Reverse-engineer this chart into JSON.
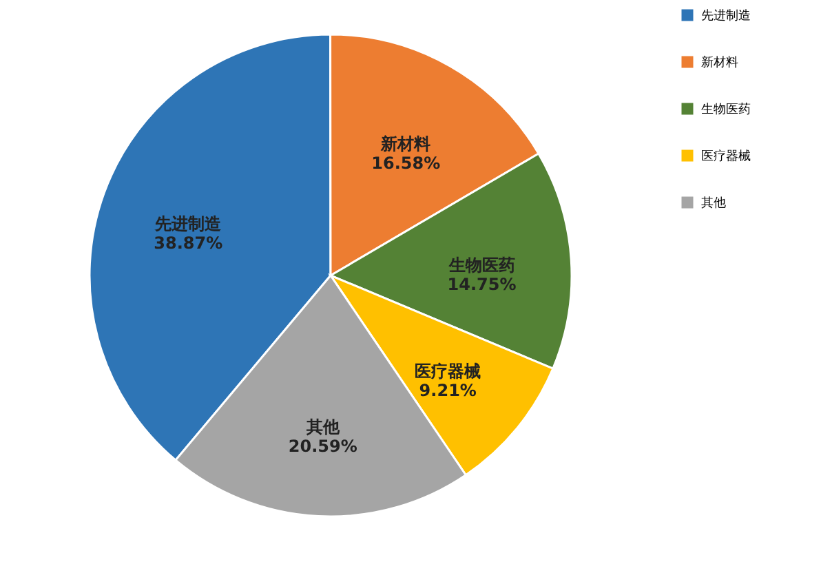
{
  "chart_data": {
    "type": "pie",
    "categories": [
      "先进制造",
      "新材料",
      "生物医药",
      "医疗器械",
      "其他"
    ],
    "values": [
      38.87,
      16.58,
      14.75,
      9.21,
      20.59
    ],
    "value_labels": [
      "38.87%",
      "16.58%",
      "14.75%",
      "9.21%",
      "20.59%"
    ],
    "colors": [
      "#2e75b6",
      "#ed7d31",
      "#548235",
      "#ffc000",
      "#a5a5a5"
    ],
    "data_labels": true,
    "legend": "right"
  }
}
